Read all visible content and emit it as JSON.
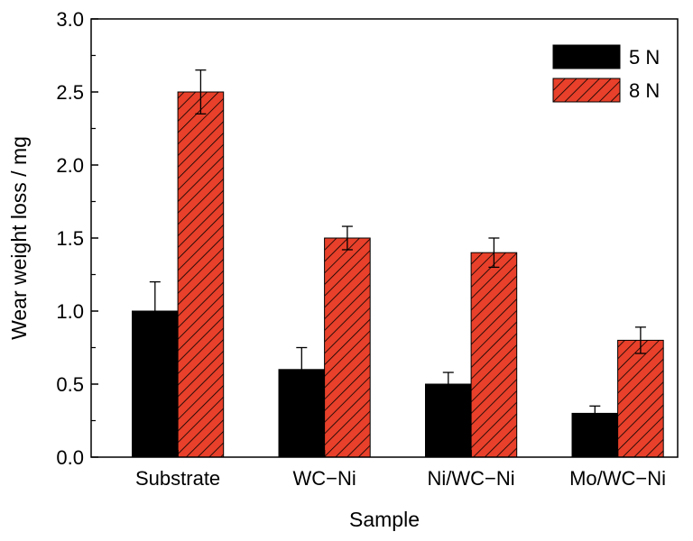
{
  "chart_data": {
    "type": "bar",
    "title": "",
    "xlabel": "Sample",
    "ylabel": "Wear weight loss / mg",
    "categories": [
      "Substrate",
      "WC−Ni",
      "Ni/WC−Ni",
      "Mo/WC−Ni"
    ],
    "ylim": [
      0,
      3.0
    ],
    "yticks": [
      "0.0",
      "0.5",
      "1.0",
      "1.5",
      "2.0",
      "2.5",
      "3.0"
    ],
    "legend_position": "top-right",
    "grid": false,
    "series": [
      {
        "name": "5 N",
        "values": [
          1.0,
          0.6,
          0.5,
          0.3
        ],
        "errors": [
          0.2,
          0.15,
          0.08,
          0.05
        ],
        "color": "#000000",
        "pattern": "solid"
      },
      {
        "name": "8 N",
        "values": [
          2.5,
          1.5,
          1.4,
          0.8
        ],
        "errors": [
          0.15,
          0.08,
          0.1,
          0.09
        ],
        "color": "#e8402a",
        "pattern": "hatch"
      }
    ]
  }
}
